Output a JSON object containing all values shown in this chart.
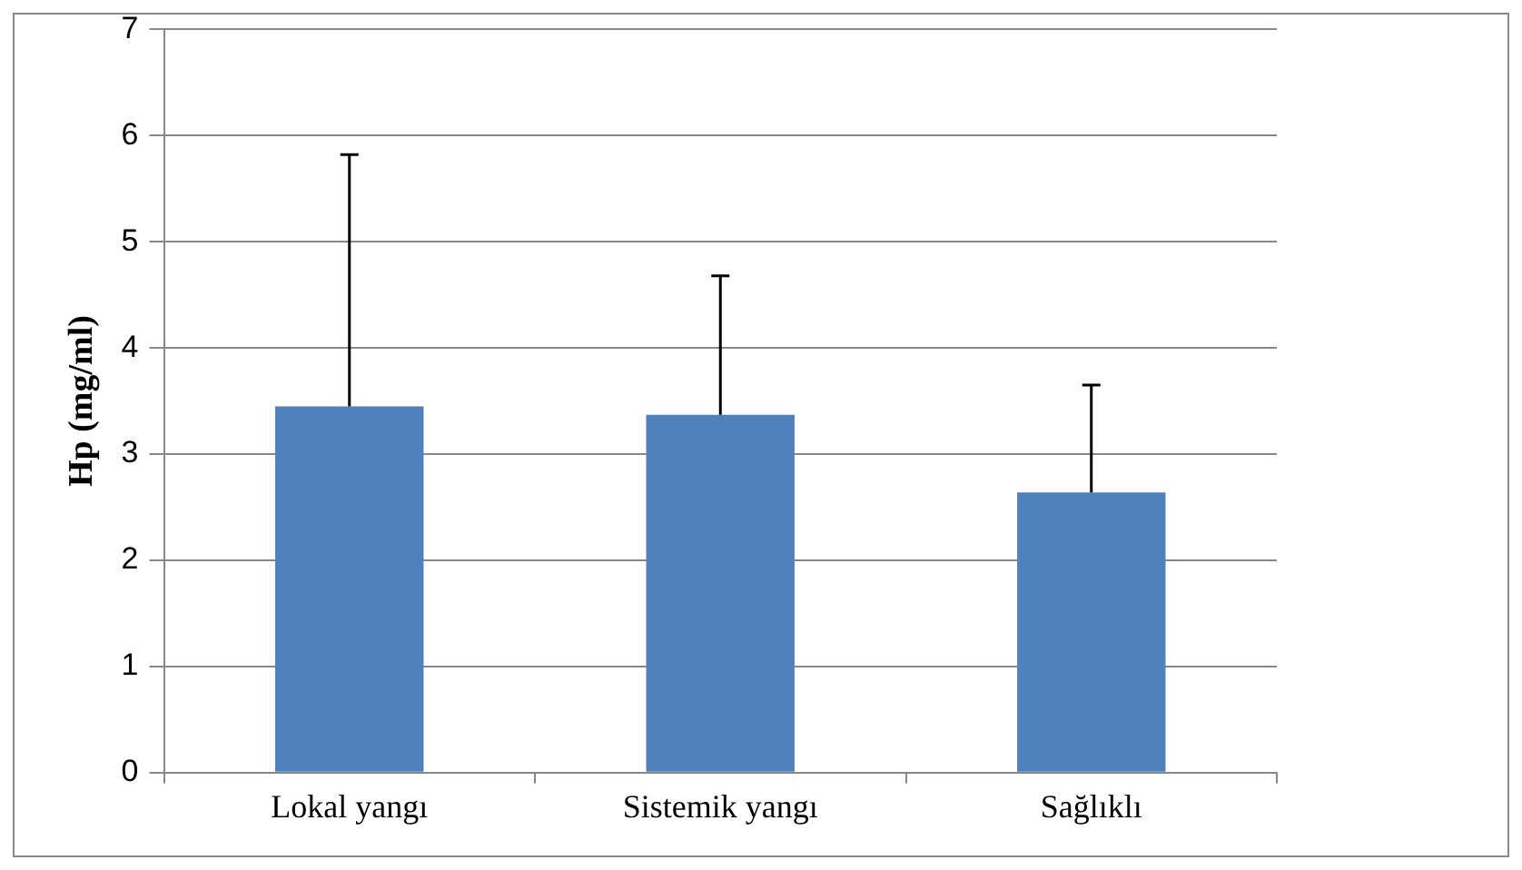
{
  "chart_data": {
    "type": "bar",
    "ylabel": "Hp (mg/ml)",
    "categories": [
      "Lokal yangı",
      "Sistemik yangı",
      "Sağlıklı"
    ],
    "values": [
      3.45,
      3.37,
      2.64
    ],
    "errors": [
      [
        3.45,
        5.82
      ],
      [
        3.37,
        4.68
      ],
      [
        2.64,
        3.65
      ]
    ],
    "color": "#4f81bd",
    "ylim": [
      0,
      7
    ],
    "yticks": [
      0,
      1,
      2,
      3,
      4,
      5,
      6,
      7
    ],
    "grid": "y"
  }
}
